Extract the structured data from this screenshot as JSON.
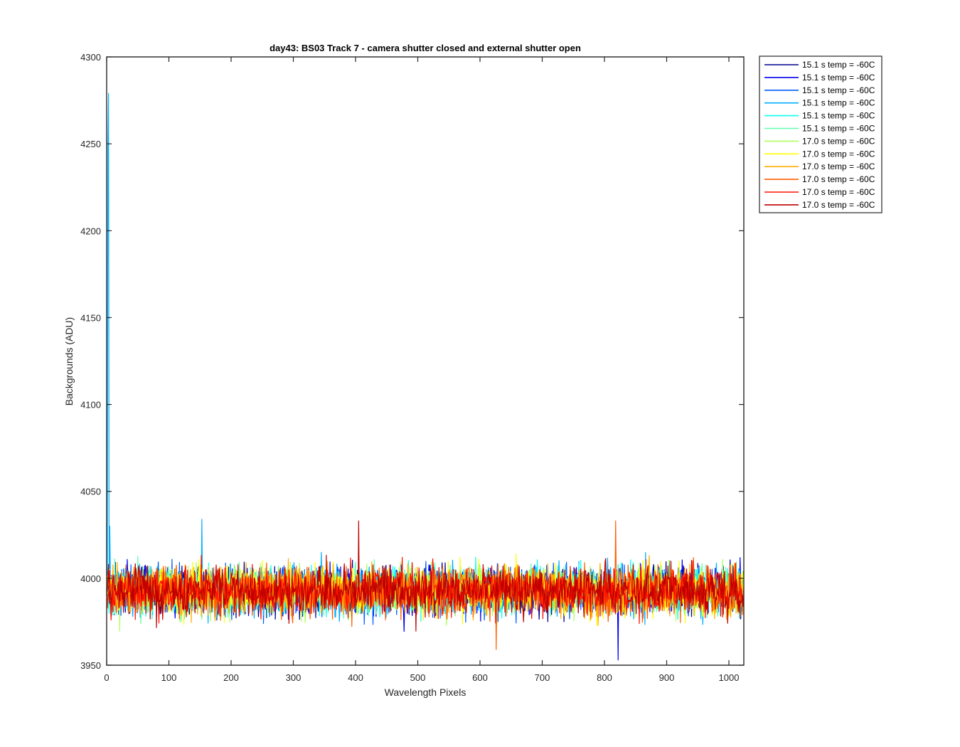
{
  "chart_data": {
    "type": "line",
    "title": "day43: BS03  Track 7 - camera shutter closed and external shutter open",
    "xlabel": "Wavelength Pixels",
    "ylabel": "Backgrounds (ADU)",
    "xlim": [
      0,
      1024
    ],
    "ylim": [
      3950,
      4300
    ],
    "xticks": [
      0,
      100,
      200,
      300,
      400,
      500,
      600,
      700,
      800,
      900,
      1000
    ],
    "yticks": [
      3950,
      4000,
      4050,
      4100,
      4150,
      4200,
      4250,
      4300
    ],
    "grid": false,
    "legend_position": "outside-top-right",
    "n_points_per_series": 1024,
    "noise_description": {
      "baseline_mean": 3993,
      "typical_range": [
        3965,
        4025
      ],
      "extreme_min": 3953,
      "extreme_max": 4033
    },
    "annotated_features": [
      {
        "series_index": 3,
        "x": 3,
        "y": 4279
      },
      {
        "series_index": 3,
        "x": 2,
        "y": 4248
      },
      {
        "series_index": 3,
        "x": 5,
        "y": 4030
      },
      {
        "series_index": 1,
        "x": 822,
        "y": 3953
      },
      {
        "series_index": 9,
        "x": 818,
        "y": 4033
      },
      {
        "series_index": 11,
        "x": 405,
        "y": 4033
      },
      {
        "series_index": 3,
        "x": 153,
        "y": 4034
      },
      {
        "series_index": 9,
        "x": 626,
        "y": 3959
      }
    ],
    "series": [
      {
        "name": "15.1 s temp = -60C",
        "color": "#00008f"
      },
      {
        "name": "15.1 s temp = -60C",
        "color": "#0000ef"
      },
      {
        "name": "15.1 s temp = -60C",
        "color": "#005fff"
      },
      {
        "name": "15.1 s temp = -60C",
        "color": "#00afff"
      },
      {
        "name": "15.1 s temp = -60C",
        "color": "#0fffef"
      },
      {
        "name": "15.1 s temp = -60C",
        "color": "#5fffaf"
      },
      {
        "name": "17.0 s temp = -60C",
        "color": "#afff5f"
      },
      {
        "name": "17.0 s temp = -60C",
        "color": "#ffff00"
      },
      {
        "name": "17.0 s temp = -60C",
        "color": "#ffaf00"
      },
      {
        "name": "17.0 s temp = -60C",
        "color": "#ff5f00"
      },
      {
        "name": "17.0 s temp = -60C",
        "color": "#ff1000"
      },
      {
        "name": "17.0 s temp = -60C",
        "color": "#bf0000"
      }
    ]
  }
}
